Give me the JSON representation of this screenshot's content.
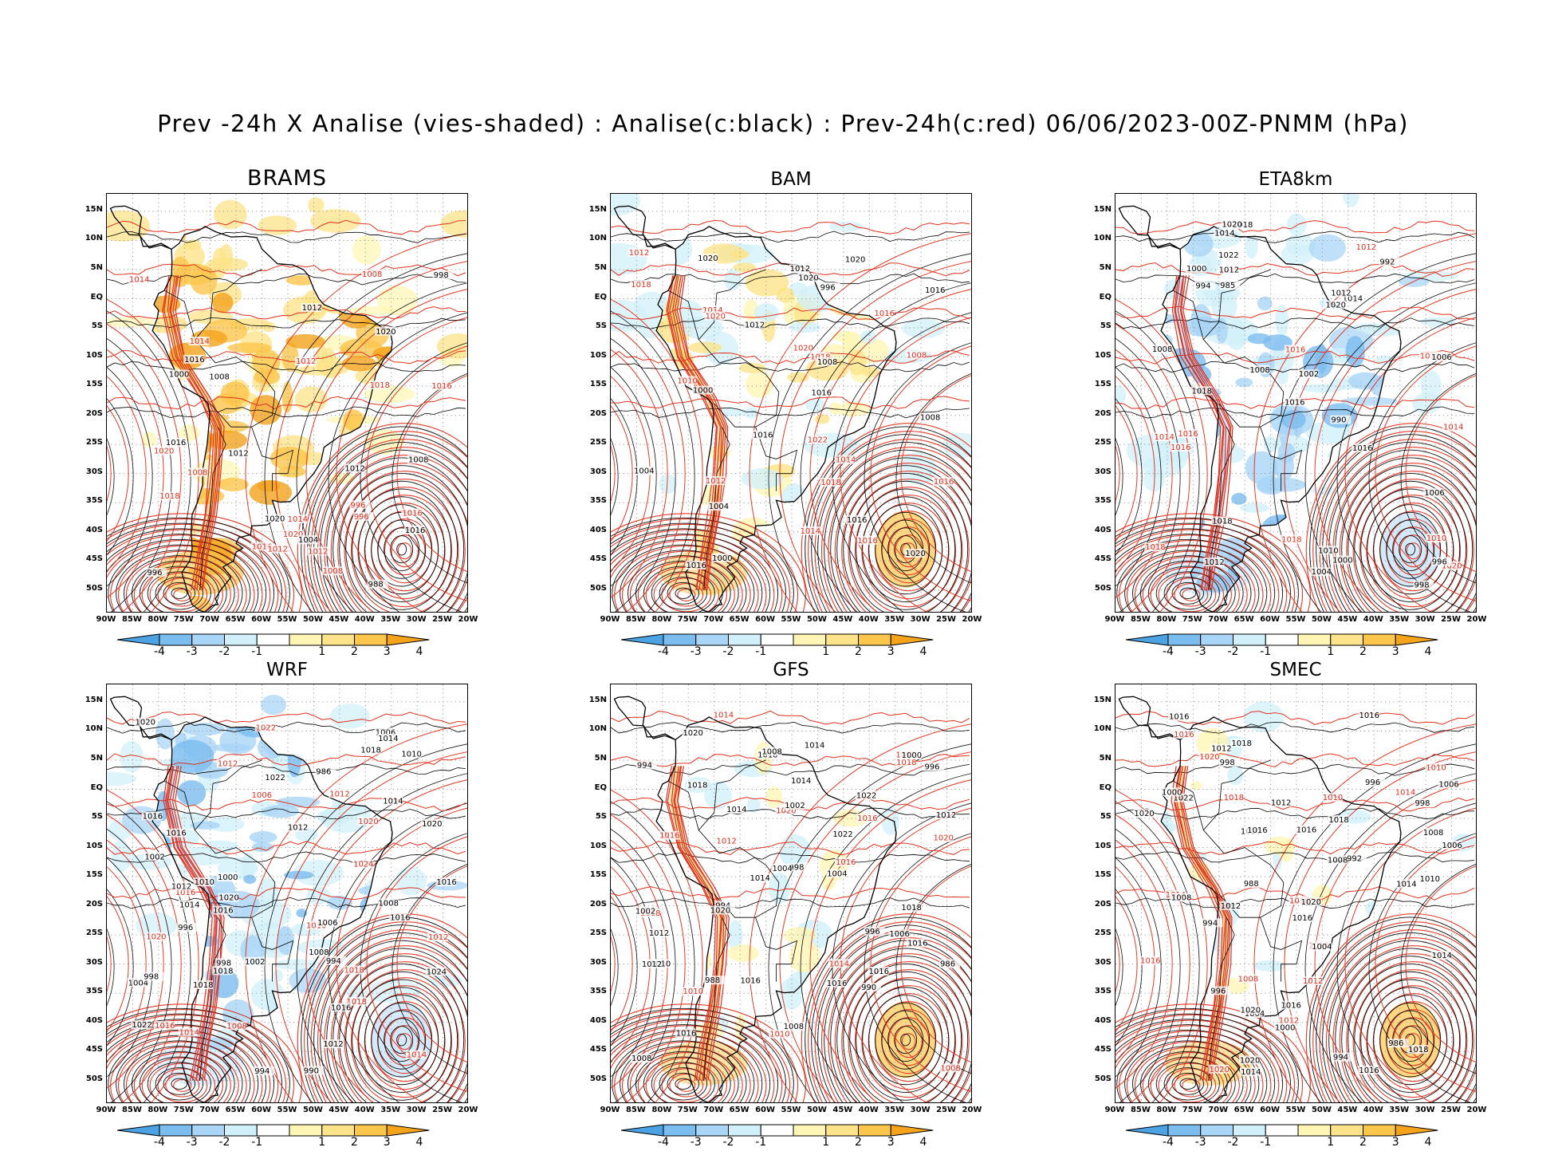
{
  "title": "Prev -24h X Analise (vies-shaded) : Analise(c:black) : Prev-24h(c:red) 06/06/2023-00Z-PNMM (hPa)",
  "lat_labels": [
    "15N",
    "10N",
    "5N",
    "EQ",
    "5S",
    "10S",
    "15S",
    "20S",
    "25S",
    "30S",
    "35S",
    "40S",
    "45S",
    "50S"
  ],
  "lon_labels": [
    "90W",
    "85W",
    "80W",
    "75W",
    "70W",
    "65W",
    "60W",
    "55W",
    "50W",
    "45W",
    "40W",
    "35W",
    "30W",
    "25W",
    "20W"
  ],
  "colorbar": {
    "labels": [
      "-4",
      "-3",
      "-2",
      "-1",
      "1",
      "2",
      "3",
      "4"
    ],
    "colors": [
      "#4ba3e3",
      "#7cbdf0",
      "#a9d5f6",
      "#d2f0fa",
      "#ffffff",
      "#fff5b5",
      "#fde38a",
      "#fcc64c",
      "#f4a31b"
    ]
  },
  "colors": {
    "analysis_contour": "#000000",
    "forecast_contour": "#e0301e",
    "grid": "#999999"
  },
  "panels": [
    {
      "title": "BRAMS",
      "bias": "warm",
      "labels_black": [
        "1012",
        "1012",
        "1012",
        "1016",
        "1016",
        "1020",
        "1020",
        "1016",
        "1004",
        "1008",
        "1000",
        "998",
        "988",
        "1008",
        "996"
      ],
      "labels_red": [
        "1016",
        "1014",
        "1012",
        "1014",
        "1016",
        "1018",
        "1020",
        "1020",
        "1018",
        "1014",
        "1008",
        "1016",
        "1012",
        "1008",
        "1008",
        "1012",
        "996",
        "996"
      ]
    },
    {
      "title": "BAM",
      "bias": "mixed",
      "labels_black": [
        "1016",
        "1016",
        "1012",
        "1016",
        "1020",
        "1020",
        "1020",
        "1016",
        "1004",
        "1000",
        "1008",
        "1004",
        "1000",
        "996",
        "1008",
        "1020",
        "1016",
        "1012"
      ],
      "labels_red": [
        "1014",
        "1012",
        "1016",
        "1018",
        "1018",
        "1014",
        "1012",
        "1016",
        "1020",
        "1022",
        "1014",
        "1010",
        "1008",
        "1016",
        "1018",
        "1020"
      ]
    },
    {
      "title": "ETA8km",
      "bias": "cool",
      "labels_black": [
        "1012",
        "1014",
        "1016",
        "1014",
        "1018",
        "1018",
        "1020",
        "1022",
        "1016",
        "1012",
        "1008",
        "1002",
        "1000",
        "996",
        "992",
        "990",
        "985",
        "1010",
        "1006",
        "1008",
        "1012",
        "1006",
        "1004",
        "1000",
        "998",
        "994",
        "1020",
        "1018"
      ],
      "labels_red": [
        "1014",
        "1016",
        "1012",
        "1016",
        "1018",
        "1020",
        "1014",
        "1018",
        "1012",
        "1010",
        "1016"
      ]
    },
    {
      "title": "WRF",
      "bias": "cool",
      "labels_black": [
        "1016",
        "1012",
        "1010",
        "1014",
        "1016",
        "1018",
        "1022",
        "1024",
        "1020",
        "1016",
        "1012",
        "1006",
        "1002",
        "998",
        "994",
        "990",
        "986",
        "1008",
        "1016",
        "1014",
        "1012",
        "1010",
        "1018",
        "1022",
        "1020",
        "1014",
        "1008",
        "1006",
        "1004",
        "1002",
        "1000",
        "998",
        "996",
        "994",
        "1016",
        "1018",
        "1020",
        "1016"
      ],
      "labels_red": [
        "1014",
        "1012",
        "1016",
        "1018",
        "1020",
        "1022",
        "1024",
        "1016",
        "1014",
        "1012",
        "1010",
        "1018",
        "1020",
        "1012",
        "1008",
        "1006"
      ]
    },
    {
      "title": "GFS",
      "bias": "mild",
      "labels_black": [
        "1016",
        "1016",
        "1012",
        "1014",
        "1014",
        "1018",
        "1016",
        "1022",
        "1018",
        "1016",
        "1012",
        "1010",
        "1008",
        "1004",
        "1002",
        "998",
        "996",
        "994",
        "990",
        "988",
        "986",
        "1014",
        "1018",
        "1022",
        "1020",
        "1016",
        "1014",
        "1012",
        "1008",
        "1006",
        "1004",
        "1002",
        "1000",
        "996",
        "994",
        "1008",
        "1020"
      ],
      "labels_red": [
        "1016",
        "1010",
        "1012",
        "1014",
        "1016",
        "1018",
        "1020",
        "1012",
        "1014",
        "1016",
        "1018",
        "1020",
        "1010",
        "1008"
      ]
    },
    {
      "title": "SMEC",
      "bias": "mild",
      "labels_black": [
        "1016",
        "1016",
        "1012",
        "1014",
        "1014",
        "1018",
        "1016",
        "1020",
        "1018",
        "1016",
        "1012",
        "1010",
        "1008",
        "1006",
        "1004",
        "1000",
        "998",
        "996",
        "994",
        "992",
        "988",
        "986",
        "1016",
        "1020",
        "1018",
        "1022",
        "1020",
        "1016",
        "1014",
        "1012",
        "1008",
        "1006",
        "1004",
        "1000",
        "998",
        "996",
        "994",
        "1010",
        "1008",
        "1020",
        "1016"
      ],
      "labels_red": [
        "1016",
        "1010",
        "1012",
        "1014",
        "1016",
        "1018",
        "1020",
        "1012",
        "1014",
        "1016",
        "1018",
        "1020",
        "1010",
        "1008"
      ]
    }
  ]
}
